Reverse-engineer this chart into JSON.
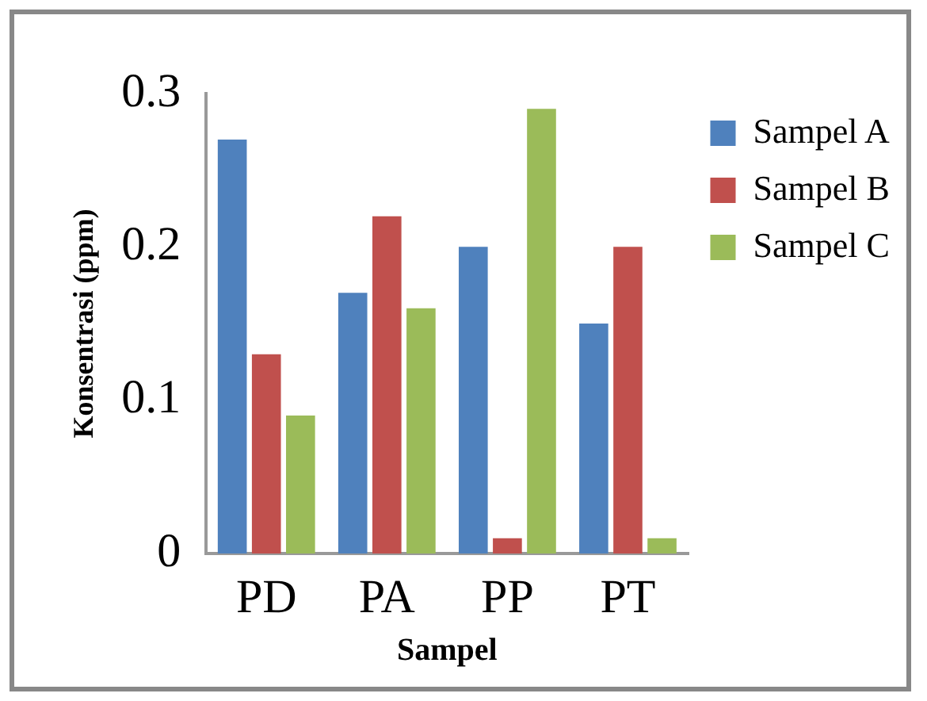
{
  "chart_data": {
    "type": "bar",
    "xlabel": "Sampel",
    "ylabel": "Konsentrasi (ppm)",
    "categories": [
      "PD",
      "PA",
      "PP",
      "PT"
    ],
    "series": [
      {
        "name": "Sampel A",
        "color": "#4f81bd",
        "values": [
          0.27,
          0.17,
          0.2,
          0.15
        ]
      },
      {
        "name": "Sampel B",
        "color": "#c0504d",
        "values": [
          0.13,
          0.22,
          0.01,
          0.2
        ]
      },
      {
        "name": "Sampel C",
        "color": "#9bbb59",
        "values": [
          0.09,
          0.16,
          0.29,
          0.01
        ]
      }
    ],
    "ylim": [
      0,
      0.3
    ],
    "yticks": [
      0,
      0.1,
      0.2,
      0.3
    ],
    "grid": false,
    "legend": "right"
  }
}
